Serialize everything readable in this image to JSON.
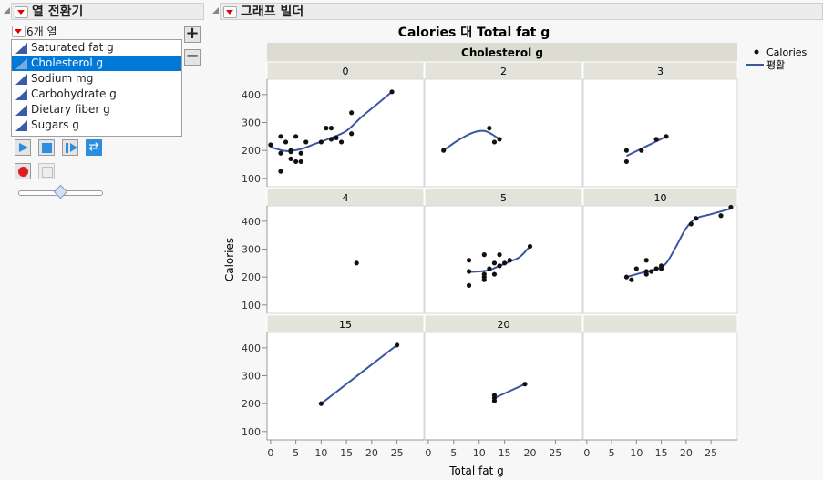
{
  "column_switcher": {
    "title": "열 전환기",
    "count_label": "6개 열",
    "items": [
      "Saturated fat g",
      "Cholesterol g",
      "Sodium mg",
      "Carbohydrate g",
      "Dietary fiber g",
      "Sugars g"
    ],
    "selected_index": 1,
    "add_label": "+",
    "remove_label": "−",
    "slider_value": 0.5
  },
  "graph_builder": {
    "title": "그래프 빌더"
  },
  "chart_data": {
    "type": "scatter",
    "title": "Calories 대 Total fat g",
    "wrap_label": "Cholesterol g",
    "xlabel": "Total fat g",
    "ylabel": "Calories",
    "xlim": [
      -0.7,
      30.3
    ],
    "ylim": [
      70,
      455
    ],
    "xticks": [
      0,
      5,
      10,
      15,
      20,
      25
    ],
    "yticks": [
      100,
      200,
      300,
      400
    ],
    "grid": false,
    "legend_placement": "top-right",
    "legend": [
      {
        "label": "Calories",
        "kind": "point"
      },
      {
        "label": "평활",
        "kind": "line"
      }
    ],
    "colors": {
      "points": "#111111",
      "smoother": "#3b56a0",
      "header": "#e3e3d9"
    },
    "panels": [
      {
        "label": "0",
        "points": [
          [
            0,
            220
          ],
          [
            2,
            190
          ],
          [
            2,
            125
          ],
          [
            2,
            250
          ],
          [
            3,
            230
          ],
          [
            4,
            195
          ],
          [
            4,
            170
          ],
          [
            4,
            200
          ],
          [
            5,
            250
          ],
          [
            5,
            160
          ],
          [
            6,
            160
          ],
          [
            6,
            190
          ],
          [
            7,
            230
          ],
          [
            10,
            230
          ],
          [
            11,
            280
          ],
          [
            12,
            280
          ],
          [
            12,
            240
          ],
          [
            13,
            245
          ],
          [
            14,
            230
          ],
          [
            16,
            335
          ],
          [
            16,
            260
          ],
          [
            24,
            410
          ]
        ],
        "smoother": [
          [
            0,
            212
          ],
          [
            3,
            198
          ],
          [
            6,
            205
          ],
          [
            9,
            225
          ],
          [
            12,
            245
          ],
          [
            15,
            270
          ],
          [
            18,
            320
          ],
          [
            21,
            365
          ],
          [
            24,
            410
          ]
        ]
      },
      {
        "label": "2",
        "points": [
          [
            3,
            200
          ],
          [
            12,
            280
          ],
          [
            13,
            230
          ],
          [
            14,
            240
          ]
        ],
        "smoother": [
          [
            3,
            200
          ],
          [
            6,
            238
          ],
          [
            9,
            265
          ],
          [
            11,
            270
          ],
          [
            12.5,
            258
          ],
          [
            14,
            240
          ]
        ]
      },
      {
        "label": "3",
        "points": [
          [
            8,
            200
          ],
          [
            8,
            160
          ],
          [
            11,
            200
          ],
          [
            14,
            240
          ],
          [
            16,
            250
          ]
        ],
        "smoother": [
          [
            8,
            180
          ],
          [
            12,
            215
          ],
          [
            16,
            250
          ]
        ]
      },
      {
        "label": "4",
        "points": [
          [
            17,
            250
          ]
        ],
        "smoother": []
      },
      {
        "label": "5",
        "points": [
          [
            8,
            260
          ],
          [
            8,
            220
          ],
          [
            8,
            170
          ],
          [
            11,
            280
          ],
          [
            11,
            210
          ],
          [
            11,
            200
          ],
          [
            11,
            190
          ],
          [
            12,
            230
          ],
          [
            13,
            250
          ],
          [
            13,
            210
          ],
          [
            14,
            280
          ],
          [
            14,
            240
          ],
          [
            15,
            250
          ],
          [
            16,
            260
          ],
          [
            20,
            310
          ]
        ],
        "smoother": [
          [
            8,
            218
          ],
          [
            10,
            220
          ],
          [
            12,
            225
          ],
          [
            14,
            240
          ],
          [
            16,
            255
          ],
          [
            18,
            272
          ],
          [
            20,
            310
          ]
        ]
      },
      {
        "label": "10",
        "points": [
          [
            8,
            200
          ],
          [
            9,
            190
          ],
          [
            10,
            230
          ],
          [
            12,
            260
          ],
          [
            12,
            220
          ],
          [
            12,
            210
          ],
          [
            13,
            220
          ],
          [
            14,
            230
          ],
          [
            15,
            230
          ],
          [
            15,
            240
          ],
          [
            21,
            390
          ],
          [
            22,
            410
          ],
          [
            27,
            420
          ],
          [
            29,
            450
          ]
        ],
        "smoother": [
          [
            8,
            200
          ],
          [
            11,
            215
          ],
          [
            14,
            228
          ],
          [
            16,
            250
          ],
          [
            18,
            310
          ],
          [
            20,
            375
          ],
          [
            22,
            410
          ],
          [
            25,
            425
          ],
          [
            29,
            445
          ]
        ]
      },
      {
        "label": "15",
        "points": [
          [
            10,
            200
          ],
          [
            25,
            410
          ]
        ],
        "smoother": [
          [
            10,
            200
          ],
          [
            25,
            410
          ]
        ]
      },
      {
        "label": "20",
        "points": [
          [
            13,
            230
          ],
          [
            13,
            220
          ],
          [
            13,
            210
          ],
          [
            19,
            270
          ]
        ],
        "smoother": [
          [
            13,
            220
          ],
          [
            19,
            270
          ]
        ]
      },
      {
        "label": "",
        "points": [],
        "smoother": []
      }
    ]
  }
}
